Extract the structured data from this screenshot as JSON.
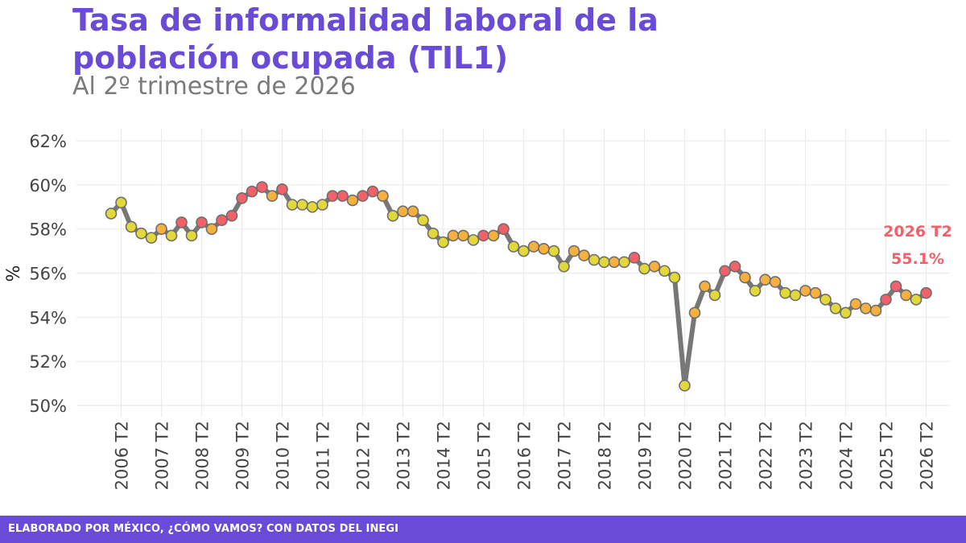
{
  "header": {
    "title": "Tasa de informalidad laboral de la población ocupada (TIL1)",
    "subtitle": "Al 2º trimestre de 2026"
  },
  "footer": {
    "text": "ELABORADO POR MÉXICO, ¿CÓMO VAMOS? CON DATOS DEL INEGI"
  },
  "colors": {
    "title": "#6a4bd6",
    "footer_bg": "#6a4bd6",
    "line": "#777777",
    "point_outline": "#6e6e6e",
    "point_yellow": "#e2d83a",
    "point_orange": "#f5b03f",
    "point_red": "#f2606a",
    "annotation": "#f2606a",
    "grid": "#ebebeb"
  },
  "chart_data": {
    "type": "line",
    "title": "Tasa de informalidad laboral de la población ocupada (TIL1)",
    "subtitle": "Al 2º trimestre de 2026",
    "xlabel": "",
    "ylabel": "%",
    "ylim": [
      50,
      62
    ],
    "y_ticks": [
      50,
      52,
      54,
      56,
      58,
      60,
      62
    ],
    "y_tick_labels": [
      "50%",
      "52%",
      "54%",
      "56%",
      "58%",
      "60%",
      "62%"
    ],
    "x_tick_labels": [
      "2006 T2",
      "2007 T2",
      "2008 T2",
      "2009 T2",
      "2010 T2",
      "2011 T2",
      "2012 T2",
      "2013 T2",
      "2014 T2",
      "2015 T2",
      "2016 T2",
      "2017 T2",
      "2018 T2",
      "2019 T2",
      "2020 T2",
      "2021 T2",
      "2022 T2",
      "2023 T2",
      "2024 T2",
      "2025 T2",
      "2026 T2"
    ],
    "grid": true,
    "legend": "none",
    "x": [
      "2006 T1",
      "2006 T2",
      "2006 T3",
      "2006 T4",
      "2007 T1",
      "2007 T2",
      "2007 T3",
      "2007 T4",
      "2008 T1",
      "2008 T2",
      "2008 T3",
      "2008 T4",
      "2009 T1",
      "2009 T2",
      "2009 T3",
      "2009 T4",
      "2010 T1",
      "2010 T2",
      "2010 T3",
      "2010 T4",
      "2011 T1",
      "2011 T2",
      "2011 T3",
      "2011 T4",
      "2012 T1",
      "2012 T2",
      "2012 T3",
      "2012 T4",
      "2013 T1",
      "2013 T2",
      "2013 T3",
      "2013 T4",
      "2014 T1",
      "2014 T2",
      "2014 T3",
      "2014 T4",
      "2015 T1",
      "2015 T2",
      "2015 T3",
      "2015 T4",
      "2016 T1",
      "2016 T2",
      "2016 T3",
      "2016 T4",
      "2017 T1",
      "2017 T2",
      "2017 T3",
      "2017 T4",
      "2018 T1",
      "2018 T2",
      "2018 T3",
      "2018 T4",
      "2019 T1",
      "2019 T2",
      "2019 T3",
      "2019 T4",
      "2020 T1",
      "2020 T2",
      "2020 T3",
      "2020 T4",
      "2021 T1",
      "2021 T2",
      "2021 T3",
      "2021 T4",
      "2022 T1",
      "2022 T2",
      "2022 T3",
      "2022 T4",
      "2023 T1",
      "2023 T2",
      "2023 T3",
      "2023 T4",
      "2024 T1",
      "2024 T2",
      "2024 T3",
      "2024 T4",
      "2025 T1",
      "2025 T2",
      "2025 T3",
      "2025 T4",
      "2026 T1",
      "2026 T2"
    ],
    "values": [
      58.7,
      59.2,
      58.1,
      57.8,
      57.6,
      58.0,
      57.7,
      58.3,
      57.7,
      58.3,
      58.0,
      58.4,
      58.6,
      59.4,
      59.7,
      59.9,
      59.5,
      59.8,
      59.1,
      59.1,
      59.0,
      59.1,
      59.5,
      59.5,
      59.3,
      59.5,
      59.7,
      59.5,
      58.6,
      58.8,
      58.8,
      58.4,
      57.8,
      57.4,
      57.7,
      57.7,
      57.5,
      57.7,
      57.7,
      58.0,
      57.2,
      57.0,
      57.2,
      57.1,
      57.0,
      56.3,
      57.0,
      56.8,
      56.6,
      56.5,
      56.5,
      56.5,
      56.7,
      56.2,
      56.3,
      56.1,
      55.8,
      50.9,
      54.2,
      55.4,
      55.0,
      56.1,
      56.3,
      55.8,
      55.2,
      55.7,
      55.6,
      55.1,
      55.0,
      55.2,
      55.1,
      54.8,
      54.4,
      54.2,
      54.6,
      54.4,
      54.3,
      54.8,
      55.4,
      55.0,
      54.8,
      55.1
    ],
    "point_colors": [
      "yellow",
      "yellow",
      "yellow",
      "yellow",
      "yellow",
      "orange",
      "yellow",
      "red",
      "yellow",
      "red",
      "orange",
      "red",
      "red",
      "red",
      "red",
      "red",
      "orange",
      "red",
      "yellow",
      "yellow",
      "yellow",
      "yellow",
      "red",
      "red",
      "orange",
      "red",
      "red",
      "orange",
      "yellow",
      "orange",
      "orange",
      "yellow",
      "yellow",
      "yellow",
      "orange",
      "orange",
      "yellow",
      "red",
      "orange",
      "red",
      "yellow",
      "yellow",
      "orange",
      "orange",
      "yellow",
      "yellow",
      "orange",
      "orange",
      "yellow",
      "yellow",
      "orange",
      "yellow",
      "red",
      "yellow",
      "orange",
      "yellow",
      "yellow",
      "yellow",
      "orange",
      "orange",
      "yellow",
      "red",
      "red",
      "orange",
      "yellow",
      "orange",
      "orange",
      "yellow",
      "yellow",
      "orange",
      "orange",
      "yellow",
      "yellow",
      "yellow",
      "orange",
      "orange",
      "orange",
      "red",
      "red",
      "orange",
      "yellow",
      "red"
    ],
    "annotation": {
      "label": "2026 T2",
      "value_label": "55.1%"
    }
  }
}
